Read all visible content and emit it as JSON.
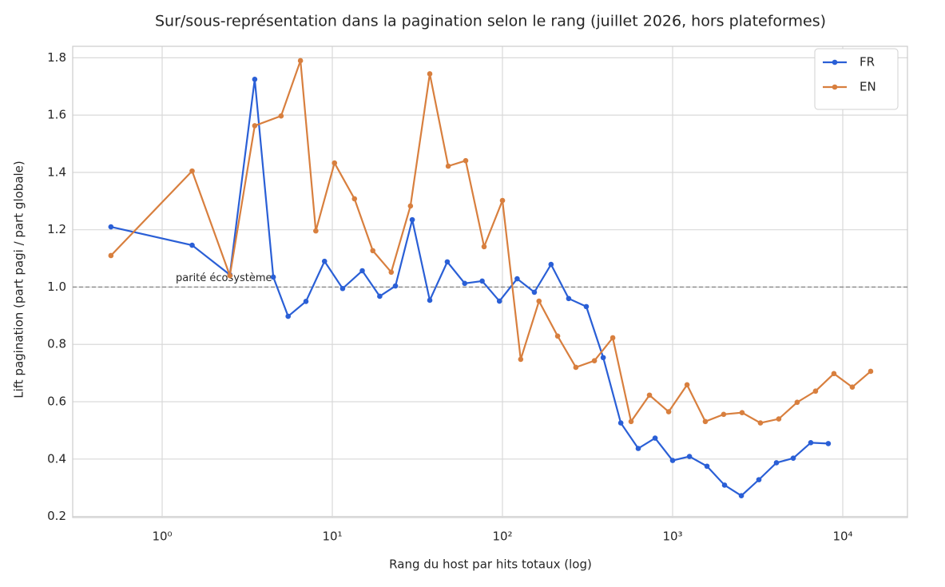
{
  "chart_data": {
    "type": "line",
    "title": "Sur/sous-représentation dans la pagination selon le rang (juillet 2026, hors plateformes)",
    "x_label": "Rang du host par hits totaux (log)",
    "y_label": "Lift pagination (part pagi / part globale)",
    "x_scale": "log",
    "xlim": [
      0.298,
      24000
    ],
    "ylim": [
      0.196,
      1.84
    ],
    "xticks": [
      {
        "value": 1,
        "label": "10⁰"
      },
      {
        "value": 10,
        "label": "10¹"
      },
      {
        "value": 100,
        "label": "10²"
      },
      {
        "value": 1000,
        "label": "10³"
      },
      {
        "value": 10000,
        "label": "10⁴"
      }
    ],
    "yticks": [
      0.2,
      0.4,
      0.6,
      0.8,
      {
        "value": 1,
        "label": "1.0"
      },
      1.2,
      1.4,
      1.6,
      1.8
    ],
    "grid": true,
    "legend": "upper right",
    "reference_line": {
      "y": 1,
      "label": "parité écosystème",
      "color": "#888888"
    },
    "series": [
      {
        "name": "FR",
        "color": "#2a5fd6",
        "x": [
          0.5,
          1.5,
          2.5,
          3.5,
          4.5,
          5.5,
          7,
          9,
          11.5,
          15,
          19,
          23.5,
          29.5,
          37.4,
          47.4,
          60,
          76,
          96,
          122,
          154,
          193,
          245,
          311,
          391,
          496,
          628,
          789,
          1000,
          1256,
          1592,
          2020,
          2535,
          3214,
          4075,
          5117,
          6486,
          8222
        ],
        "values": [
          1.21,
          1.146,
          1.043,
          1.725,
          1.035,
          0.898,
          0.95,
          1.09,
          0.995,
          1.057,
          0.968,
          1.004,
          1.235,
          0.954,
          1.088,
          1.013,
          1.021,
          0.951,
          1.029,
          0.982,
          1.079,
          0.96,
          0.932,
          0.754,
          0.526,
          0.437,
          0.473,
          0.395,
          0.409,
          0.375,
          0.309,
          0.272,
          0.328,
          0.387,
          0.403,
          0.457,
          0.454
        ]
      },
      {
        "name": "EN",
        "color": "#d87f3e",
        "x": [
          0.5,
          1.5,
          2.5,
          3.5,
          5,
          6.5,
          8,
          10.3,
          13.5,
          17.3,
          22.2,
          28.8,
          37.4,
          48,
          60.8,
          78,
          100,
          128,
          164,
          211,
          270,
          347,
          445,
          570,
          731,
          948,
          1216,
          1557,
          1995,
          2560,
          3281,
          4207,
          5395,
          6918,
          8872,
          11376,
          14590
        ],
        "values": [
          1.11,
          1.405,
          1.04,
          1.563,
          1.597,
          1.79,
          1.196,
          1.433,
          1.308,
          1.127,
          1.052,
          1.283,
          1.744,
          1.422,
          1.441,
          1.141,
          1.302,
          0.748,
          0.951,
          0.829,
          0.72,
          0.743,
          0.823,
          0.531,
          0.623,
          0.565,
          0.659,
          0.531,
          0.556,
          0.562,
          0.526,
          0.54,
          0.598,
          0.637,
          0.698,
          0.651,
          0.706
        ]
      }
    ]
  }
}
